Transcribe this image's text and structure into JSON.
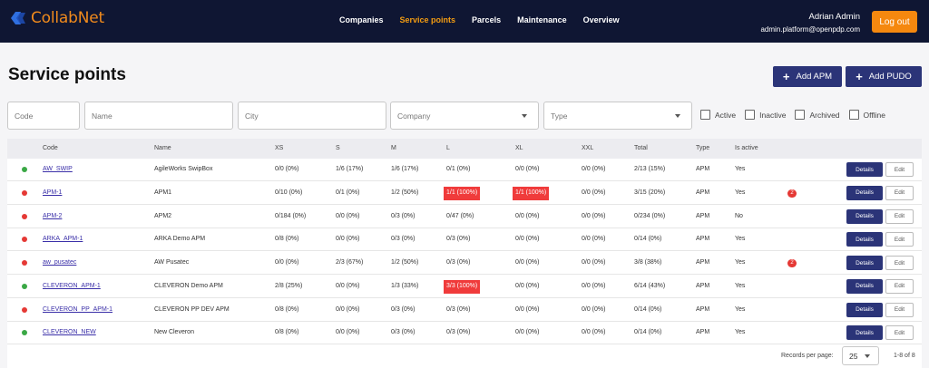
{
  "app": {
    "brand": "CollabNet",
    "accent": "#f5880f",
    "primary": "#2b3478",
    "header_bg": "#0f1633"
  },
  "nav": [
    {
      "label": "Companies",
      "active": false
    },
    {
      "label": "Service points",
      "active": true
    },
    {
      "label": "Parcels",
      "active": false
    },
    {
      "label": "Maintenance",
      "active": false
    },
    {
      "label": "Overview",
      "active": false
    }
  ],
  "user": {
    "name": "Adrian Admin",
    "email": "admin.platform@openpdp.com",
    "logout_label": "Log out"
  },
  "page": {
    "title": "Service points",
    "add_apm_label": "Add APM",
    "add_pudo_label": "Add PUDO"
  },
  "filters": {
    "code_placeholder": "Code",
    "name_placeholder": "Name",
    "city_placeholder": "City",
    "company_placeholder": "Company",
    "type_placeholder": "Type",
    "checkboxes": [
      {
        "label": "Active",
        "checked": false
      },
      {
        "label": "Inactive",
        "checked": false
      },
      {
        "label": "Archived",
        "checked": false
      },
      {
        "label": "Offline",
        "checked": false
      }
    ]
  },
  "table": {
    "headers": [
      "Code",
      "Name",
      "XS",
      "S",
      "M",
      "L",
      "XL",
      "XXL",
      "Total",
      "Type",
      "Is active"
    ],
    "details_label": "Details",
    "edit_label": "Edit",
    "rows": [
      {
        "status": "green",
        "code": "AW_SWIP",
        "name": "AgileWorks SwipBox",
        "xs": "0/0 (0%)",
        "s": "1/6 (17%)",
        "m": "1/6 (17%)",
        "l": "0/1 (0%)",
        "xl": "0/0 (0%)",
        "xxl": "0/0 (0%)",
        "total": "2/13 (15%)",
        "type": "APM",
        "active": "Yes",
        "badge": ""
      },
      {
        "status": "red",
        "code": "APM-1",
        "name": "APM1",
        "xs": "0/10 (0%)",
        "s": "0/1 (0%)",
        "m": "1/2 (50%)",
        "l": "1/1 (100%)",
        "xl": "1/1 (100%)",
        "xxl": "0/0 (0%)",
        "total": "3/15 (20%)",
        "type": "APM",
        "active": "Yes",
        "badge": "2"
      },
      {
        "status": "red",
        "code": "APM-2",
        "name": "APM2",
        "xs": "0/184 (0%)",
        "s": "0/0 (0%)",
        "m": "0/3 (0%)",
        "l": "0/47 (0%)",
        "xl": "0/0 (0%)",
        "xxl": "0/0 (0%)",
        "total": "0/234 (0%)",
        "type": "APM",
        "active": "No",
        "badge": ""
      },
      {
        "status": "red",
        "code": "ARKA_APM-1",
        "name": "ARKA Demo APM",
        "xs": "0/8 (0%)",
        "s": "0/0 (0%)",
        "m": "0/3 (0%)",
        "l": "0/3 (0%)",
        "xl": "0/0 (0%)",
        "xxl": "0/0 (0%)",
        "total": "0/14 (0%)",
        "type": "APM",
        "active": "Yes",
        "badge": ""
      },
      {
        "status": "red",
        "code": "aw_pusatec",
        "name": "AW Pusatec",
        "xs": "0/0 (0%)",
        "s": "2/3 (67%)",
        "m": "1/2 (50%)",
        "l": "0/3 (0%)",
        "xl": "0/0 (0%)",
        "xxl": "0/0 (0%)",
        "total": "3/8 (38%)",
        "type": "APM",
        "active": "Yes",
        "badge": "2"
      },
      {
        "status": "green",
        "code": "CLEVERON_APM-1",
        "name": "CLEVERON Demo APM",
        "xs": "2/8 (25%)",
        "s": "0/0 (0%)",
        "m": "1/3 (33%)",
        "l": "3/3 (100%)",
        "xl": "0/0 (0%)",
        "xxl": "0/0 (0%)",
        "total": "6/14 (43%)",
        "type": "APM",
        "active": "Yes",
        "badge": ""
      },
      {
        "status": "red",
        "code": "CLEVERON_PP_APM-1",
        "name": "CLEVERON PP DEV APM",
        "xs": "0/8 (0%)",
        "s": "0/0 (0%)",
        "m": "0/3 (0%)",
        "l": "0/3 (0%)",
        "xl": "0/0 (0%)",
        "xxl": "0/0 (0%)",
        "total": "0/14 (0%)",
        "type": "APM",
        "active": "Yes",
        "badge": ""
      },
      {
        "status": "green",
        "code": "CLEVERON_NEW",
        "name": "New Cleveron",
        "xs": "0/8 (0%)",
        "s": "0/0 (0%)",
        "m": "0/3 (0%)",
        "l": "0/3 (0%)",
        "xl": "0/0 (0%)",
        "xxl": "0/0 (0%)",
        "total": "0/14 (0%)",
        "type": "APM",
        "active": "Yes",
        "badge": ""
      }
    ]
  },
  "pagination": {
    "records_label": "Records per page:",
    "per_page": "25",
    "range": "1-8 of 8"
  },
  "colors": {
    "status_green": "#3aa845",
    "status_red": "#e53935",
    "alert": "#f03b3b"
  }
}
